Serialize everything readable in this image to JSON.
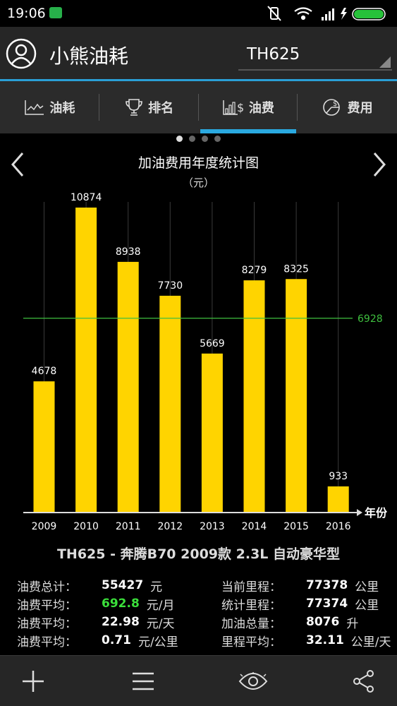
{
  "status_bar": {
    "time": "19:06"
  },
  "header": {
    "app_title": "小熊油耗",
    "car_selector_value": "TH625"
  },
  "tabs": [
    {
      "label": "油耗",
      "icon": "line-chart-icon"
    },
    {
      "label": "排名",
      "icon": "trophy-icon"
    },
    {
      "label": "油费",
      "icon": "bar-chart-dollar-icon",
      "active": true
    },
    {
      "label": "费用",
      "icon": "pie-chart-dollar-icon"
    }
  ],
  "pager": {
    "pages": 4,
    "current": 1
  },
  "chart_data": {
    "type": "bar",
    "title": "加油费用年度统计图",
    "ylabel": "（元）",
    "xlabel": "年份",
    "categories": [
      "2009",
      "2010",
      "2011",
      "2012",
      "2013",
      "2014",
      "2015",
      "2016"
    ],
    "values": [
      4678,
      10874,
      8938,
      7730,
      5669,
      8279,
      8325,
      933
    ],
    "average_line": 6928,
    "ylim": [
      0,
      10874
    ],
    "bar_color": "#ffd400",
    "average_line_color": "#3fbf3f"
  },
  "car_description": "TH625 - 奔腾B70 2009款 2.3L 自动豪华型",
  "stats": {
    "left": [
      {
        "label": "油费总计：",
        "value": "55427",
        "unit": "元"
      },
      {
        "label": "油费平均：",
        "value": "692.8",
        "unit": "元/月",
        "highlight": true
      },
      {
        "label": "油费平均：",
        "value": "22.98",
        "unit": "元/天"
      },
      {
        "label": "油费平均：",
        "value": "0.71",
        "unit": "元/公里"
      }
    ],
    "right": [
      {
        "label": "当前里程：",
        "value": "77378",
        "unit": "公里"
      },
      {
        "label": "统计里程：",
        "value": "77374",
        "unit": "公里"
      },
      {
        "label": "加油总量：",
        "value": "8076",
        "unit": "升"
      },
      {
        "label": "里程平均：",
        "value": "32.11",
        "unit": "公里/天"
      }
    ]
  },
  "bottom_bar": [
    "add-icon",
    "menu-icon",
    "eye-icon",
    "share-icon"
  ]
}
